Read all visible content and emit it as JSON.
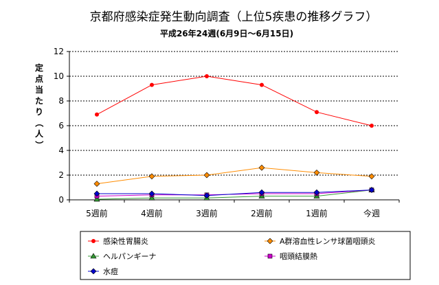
{
  "chart_data": {
    "type": "line",
    "title": "京都府感染症発生動向調査（上位5疾患の推移グラフ）",
    "subtitle": "平成26年24週(6月9日～6月15日)",
    "ylabel": "定点当たり（人）",
    "xlabel": "",
    "categories": [
      "5週前",
      "4週前",
      "3週前",
      "2週前",
      "1週前",
      "今週"
    ],
    "ylim": [
      0,
      12
    ],
    "yticks": [
      0,
      2,
      4,
      6,
      8,
      10,
      12
    ],
    "grid": true,
    "legend_position": "bottom",
    "series": [
      {
        "name": "感染性胃腸炎",
        "color": "#ff0000",
        "marker": "circle",
        "values": [
          6.9,
          9.3,
          10.0,
          9.3,
          7.1,
          6.0
        ]
      },
      {
        "name": "A群溶血性レンサ球菌咽頭炎",
        "color": "#ff8c00",
        "marker": "diamond",
        "values": [
          1.3,
          1.9,
          2.0,
          2.6,
          2.2,
          1.9
        ]
      },
      {
        "name": "ヘルパンギーナ",
        "color": "#339933",
        "marker": "triangle",
        "values": [
          0.05,
          0.15,
          0.15,
          0.3,
          0.3,
          0.8
        ]
      },
      {
        "name": "咽頭結膜熱",
        "color": "#cc00cc",
        "marker": "square",
        "values": [
          0.3,
          0.4,
          0.4,
          0.5,
          0.5,
          0.8
        ]
      },
      {
        "name": "水痘",
        "color": "#0000cc",
        "marker": "diamond",
        "values": [
          0.5,
          0.5,
          0.35,
          0.6,
          0.6,
          0.8
        ]
      }
    ]
  }
}
